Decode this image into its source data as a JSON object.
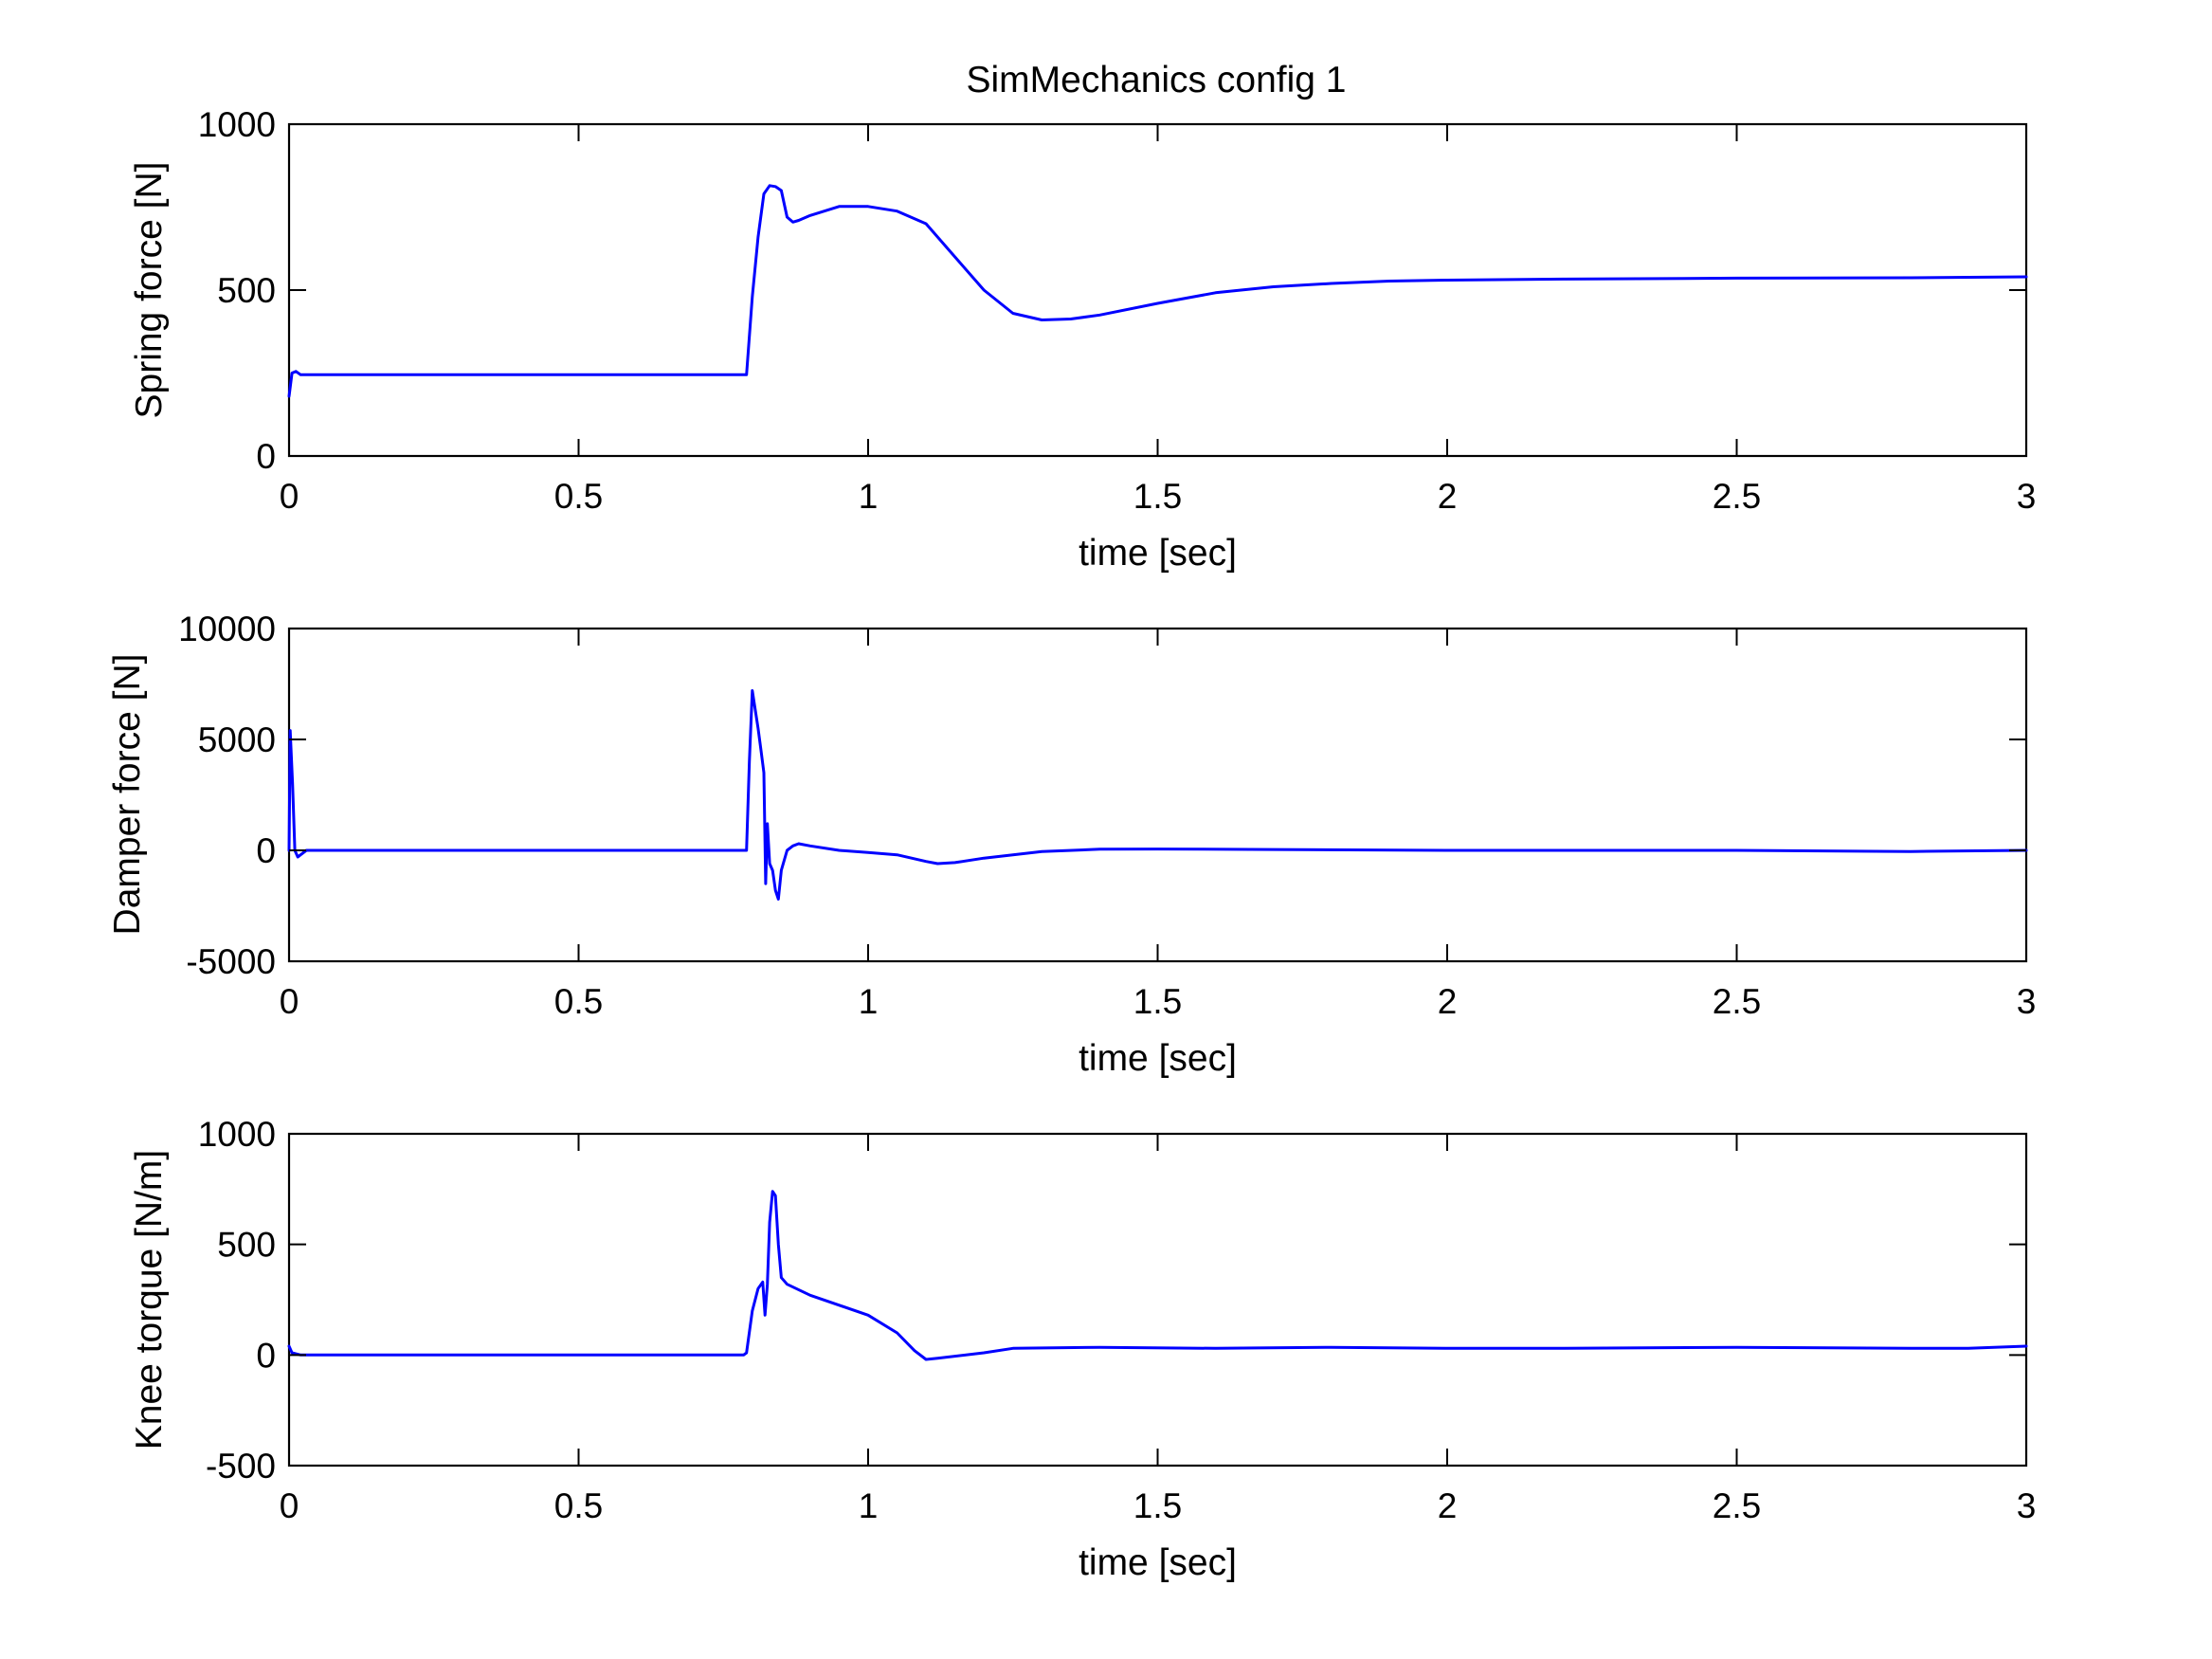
{
  "figure": {
    "title": "SimMechanics config 1"
  },
  "style": {
    "line_color": "#0000ff",
    "axis_color": "#000000",
    "background": "#ffffff"
  },
  "chart_data": [
    {
      "type": "line",
      "title": "SimMechanics config 1",
      "xlabel": "time [sec]",
      "ylabel": "Spring force [N]",
      "xlim": [
        0,
        3
      ],
      "ylim": [
        0,
        1000
      ],
      "xticks": [
        0,
        0.5,
        1,
        1.5,
        2,
        2.5,
        3
      ],
      "xtick_labels": [
        "0",
        "0.5",
        "1",
        "1.5",
        "2",
        "2.5",
        "3"
      ],
      "yticks": [
        0,
        500,
        1000
      ],
      "ytick_labels": [
        "0",
        "500",
        "1000"
      ],
      "grid": false,
      "series": [
        {
          "color": "#0000ff",
          "points": [
            [
              0,
              180
            ],
            [
              0.005,
              250
            ],
            [
              0.012,
              255
            ],
            [
              0.02,
              245
            ],
            [
              0.1,
              245
            ],
            [
              0.4,
              245
            ],
            [
              0.7,
              245
            ],
            [
              0.785,
              245
            ],
            [
              0.79,
              245
            ],
            [
              0.8,
              480
            ],
            [
              0.81,
              660
            ],
            [
              0.82,
              790
            ],
            [
              0.83,
              815
            ],
            [
              0.84,
              812
            ],
            [
              0.85,
              800
            ],
            [
              0.86,
              720
            ],
            [
              0.87,
              705
            ],
            [
              0.88,
              710
            ],
            [
              0.9,
              725
            ],
            [
              0.95,
              752
            ],
            [
              1.0,
              752
            ],
            [
              1.05,
              738
            ],
            [
              1.1,
              700
            ],
            [
              1.15,
              600
            ],
            [
              1.2,
              500
            ],
            [
              1.25,
              430
            ],
            [
              1.3,
              410
            ],
            [
              1.35,
              413
            ],
            [
              1.4,
              425
            ],
            [
              1.5,
              460
            ],
            [
              1.6,
              492
            ],
            [
              1.7,
              510
            ],
            [
              1.8,
              520
            ],
            [
              1.9,
              527
            ],
            [
              2.0,
              530
            ],
            [
              2.2,
              533
            ],
            [
              2.5,
              536
            ],
            [
              2.8,
              537
            ],
            [
              3.0,
              540
            ]
          ]
        }
      ]
    },
    {
      "type": "line",
      "xlabel": "time [sec]",
      "ylabel": "Damper force [N]",
      "xlim": [
        0,
        3
      ],
      "ylim": [
        -5000,
        10000
      ],
      "xticks": [
        0,
        0.5,
        1,
        1.5,
        2,
        2.5,
        3
      ],
      "xtick_labels": [
        "0",
        "0.5",
        "1",
        "1.5",
        "2",
        "2.5",
        "3"
      ],
      "yticks": [
        -5000,
        0,
        5000,
        10000
      ],
      "ytick_labels": [
        "-5000",
        "0",
        "5000",
        "10000"
      ],
      "grid": false,
      "series": [
        {
          "color": "#0000ff",
          "points": [
            [
              0,
              0
            ],
            [
              0.002,
              5400
            ],
            [
              0.006,
              3000
            ],
            [
              0.01,
              0
            ],
            [
              0.015,
              -300
            ],
            [
              0.02,
              -200
            ],
            [
              0.03,
              0
            ],
            [
              0.2,
              0
            ],
            [
              0.5,
              0
            ],
            [
              0.785,
              0
            ],
            [
              0.79,
              0
            ],
            [
              0.795,
              4000
            ],
            [
              0.8,
              7200
            ],
            [
              0.81,
              5500
            ],
            [
              0.815,
              4500
            ],
            [
              0.82,
              3500
            ],
            [
              0.823,
              -1500
            ],
            [
              0.826,
              1200
            ],
            [
              0.83,
              -600
            ],
            [
              0.835,
              -900
            ],
            [
              0.84,
              -1800
            ],
            [
              0.845,
              -2200
            ],
            [
              0.85,
              -900
            ],
            [
              0.86,
              0
            ],
            [
              0.87,
              200
            ],
            [
              0.88,
              300
            ],
            [
              0.9,
              200
            ],
            [
              0.95,
              0
            ],
            [
              1.0,
              -100
            ],
            [
              1.05,
              -200
            ],
            [
              1.1,
              -500
            ],
            [
              1.12,
              -600
            ],
            [
              1.15,
              -550
            ],
            [
              1.2,
              -350
            ],
            [
              1.3,
              -50
            ],
            [
              1.4,
              50
            ],
            [
              1.5,
              60
            ],
            [
              1.7,
              40
            ],
            [
              2.0,
              0
            ],
            [
              2.5,
              0
            ],
            [
              2.8,
              -50
            ],
            [
              3.0,
              0
            ]
          ]
        }
      ]
    },
    {
      "type": "line",
      "xlabel": "time [sec]",
      "ylabel": "Knee torque [N/m]",
      "xlim": [
        0,
        3
      ],
      "ylim": [
        -500,
        1000
      ],
      "xticks": [
        0,
        0.5,
        1,
        1.5,
        2,
        2.5,
        3
      ],
      "xtick_labels": [
        "0",
        "0.5",
        "1",
        "1.5",
        "2",
        "2.5",
        "3"
      ],
      "yticks": [
        -500,
        0,
        500,
        1000
      ],
      "ytick_labels": [
        "-500",
        "0",
        "500",
        "1000"
      ],
      "grid": false,
      "series": [
        {
          "color": "#0000ff",
          "points": [
            [
              0,
              40
            ],
            [
              0.005,
              10
            ],
            [
              0.02,
              0
            ],
            [
              0.2,
              0
            ],
            [
              0.5,
              0
            ],
            [
              0.785,
              0
            ],
            [
              0.79,
              10
            ],
            [
              0.8,
              200
            ],
            [
              0.81,
              300
            ],
            [
              0.818,
              330
            ],
            [
              0.822,
              180
            ],
            [
              0.826,
              320
            ],
            [
              0.83,
              600
            ],
            [
              0.835,
              740
            ],
            [
              0.84,
              720
            ],
            [
              0.845,
              500
            ],
            [
              0.85,
              350
            ],
            [
              0.86,
              320
            ],
            [
              0.9,
              270
            ],
            [
              1.0,
              180
            ],
            [
              1.05,
              100
            ],
            [
              1.08,
              20
            ],
            [
              1.1,
              -20
            ],
            [
              1.12,
              -15
            ],
            [
              1.2,
              10
            ],
            [
              1.25,
              30
            ],
            [
              1.4,
              35
            ],
            [
              1.6,
              30
            ],
            [
              1.8,
              35
            ],
            [
              2.0,
              30
            ],
            [
              2.2,
              30
            ],
            [
              2.5,
              35
            ],
            [
              2.8,
              30
            ],
            [
              2.9,
              30
            ],
            [
              3.0,
              40
            ]
          ]
        }
      ]
    }
  ]
}
